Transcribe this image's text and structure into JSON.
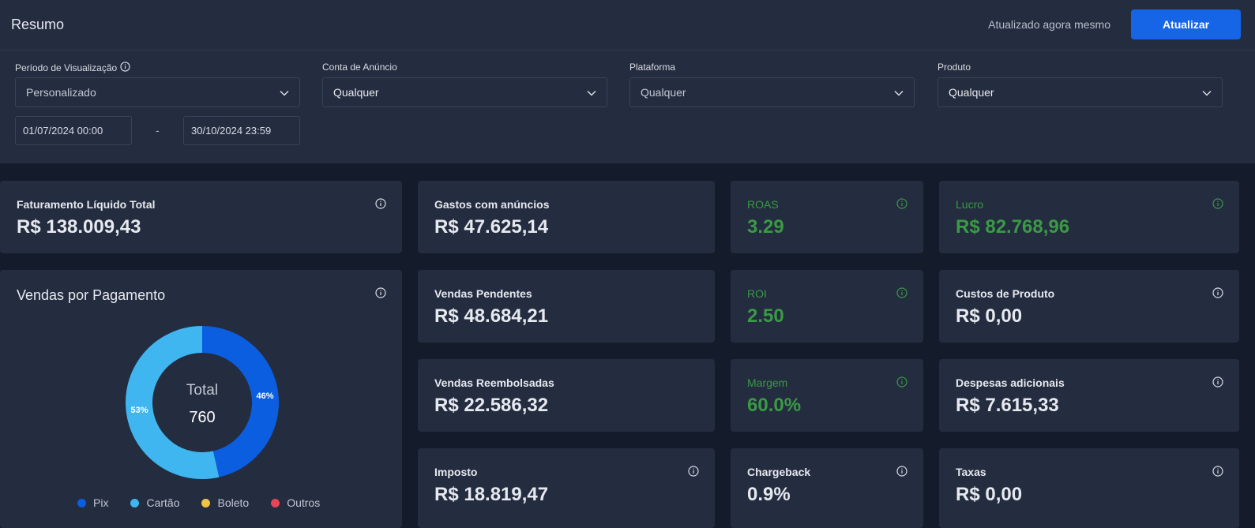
{
  "header": {
    "title": "Resumo",
    "updated_text": "Atualizado agora mesmo",
    "refresh_label": "Atualizar"
  },
  "filters": {
    "period": {
      "label": "Período de Visualização",
      "value": "Personalizado"
    },
    "ad_account": {
      "label": "Conta de Anúncio",
      "value": "Qualquer"
    },
    "platform": {
      "label": "Plataforma",
      "value": "Qualquer"
    },
    "product": {
      "label": "Produto",
      "value": "Qualquer"
    },
    "date_start": "01/07/2024 00:00",
    "date_separator": "-",
    "date_end": "30/10/2024 23:59"
  },
  "cards": {
    "faturamento": {
      "label": "Faturamento Líquido Total",
      "value": "R$ 138.009,43"
    },
    "gastos": {
      "label": "Gastos com anúncios",
      "value": "R$ 47.625,14"
    },
    "roas": {
      "label": "ROAS",
      "value": "3.29"
    },
    "lucro": {
      "label": "Lucro",
      "value": "R$ 82.768,96"
    },
    "pendentes": {
      "label": "Vendas Pendentes",
      "value": "R$ 48.684,21"
    },
    "roi": {
      "label": "ROI",
      "value": "2.50"
    },
    "custos": {
      "label": "Custos de Produto",
      "value": "R$ 0,00"
    },
    "reembolsadas": {
      "label": "Vendas Reembolsadas",
      "value": "R$ 22.586,32"
    },
    "margem": {
      "label": "Margem",
      "value": "60.0%"
    },
    "despesas": {
      "label": "Despesas adicionais",
      "value": "R$ 7.615,33"
    },
    "imposto": {
      "label": "Imposto",
      "value": "R$ 18.819,47"
    },
    "chargeback": {
      "label": "Chargeback",
      "value": "0.9%"
    },
    "taxas": {
      "label": "Taxas",
      "value": "R$ 0,00"
    }
  },
  "colors": {
    "accent": "#1565e6",
    "positive": "#3a9a45",
    "pix": "#0b5ee0",
    "cartao": "#3fb6ef",
    "boleto": "#f2c443",
    "outros": "#e64557"
  },
  "chart_data": {
    "type": "pie",
    "title": "Vendas por Pagamento",
    "center_label": "Total",
    "center_value": "760",
    "categories": [
      "Pix",
      "Cartão",
      "Boleto",
      "Outros"
    ],
    "values": [
      46,
      53,
      0,
      0
    ],
    "data_labels": [
      "46%",
      "53%",
      "",
      ""
    ],
    "colors": [
      "#0b5ee0",
      "#3fb6ef",
      "#f2c443",
      "#e64557"
    ],
    "legend_position": "bottom"
  }
}
